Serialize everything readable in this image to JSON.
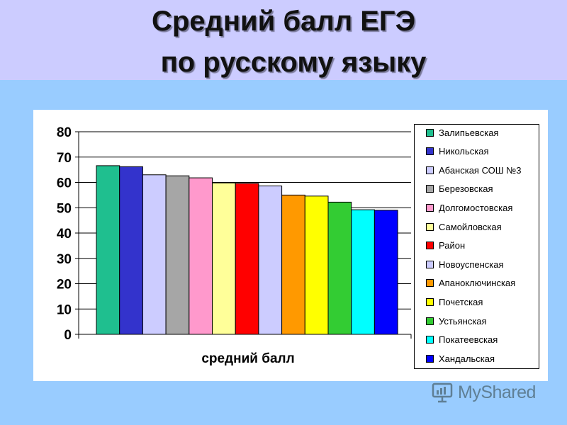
{
  "title": {
    "line1": "Средний балл ЕГЭ",
    "line2": "по русскому языку"
  },
  "watermark": "MyShared",
  "chart_data": {
    "type": "bar",
    "title": "",
    "xlabel": "средний балл",
    "ylabel": "",
    "ylim": [
      0,
      80
    ],
    "yticks": [
      0,
      10,
      20,
      30,
      40,
      50,
      60,
      70,
      80
    ],
    "grid": true,
    "legend_position": "right",
    "series": [
      {
        "name": "Залипьевская",
        "value": 66.6,
        "color": "#1fbf8f"
      },
      {
        "name": "Никольская",
        "value": 66.2,
        "color": "#3333cc"
      },
      {
        "name": "Абанская СОШ №3",
        "value": 63.0,
        "color": "#ccccff"
      },
      {
        "name": "Березовская",
        "value": 62.6,
        "color": "#a6a6a6"
      },
      {
        "name": "Долгомостовская",
        "value": 61.8,
        "color": "#ff99cc"
      },
      {
        "name": "Самойловская",
        "value": 59.8,
        "color": "#ffff99"
      },
      {
        "name": "Район",
        "value": 59.6,
        "color": "#ff0000"
      },
      {
        "name": "Новоуспенская",
        "value": 58.6,
        "color": "#ccccff"
      },
      {
        "name": "Апаноключинская",
        "value": 55.0,
        "color": "#ff9900"
      },
      {
        "name": "Почетская",
        "value": 54.6,
        "color": "#ffff00"
      },
      {
        "name": "Устьянская",
        "value": 52.2,
        "color": "#33cc33"
      },
      {
        "name": "Покатеевская",
        "value": 49.2,
        "color": "#00ffff"
      },
      {
        "name": "Хандальская",
        "value": 49.0,
        "color": "#0000ff"
      }
    ]
  }
}
